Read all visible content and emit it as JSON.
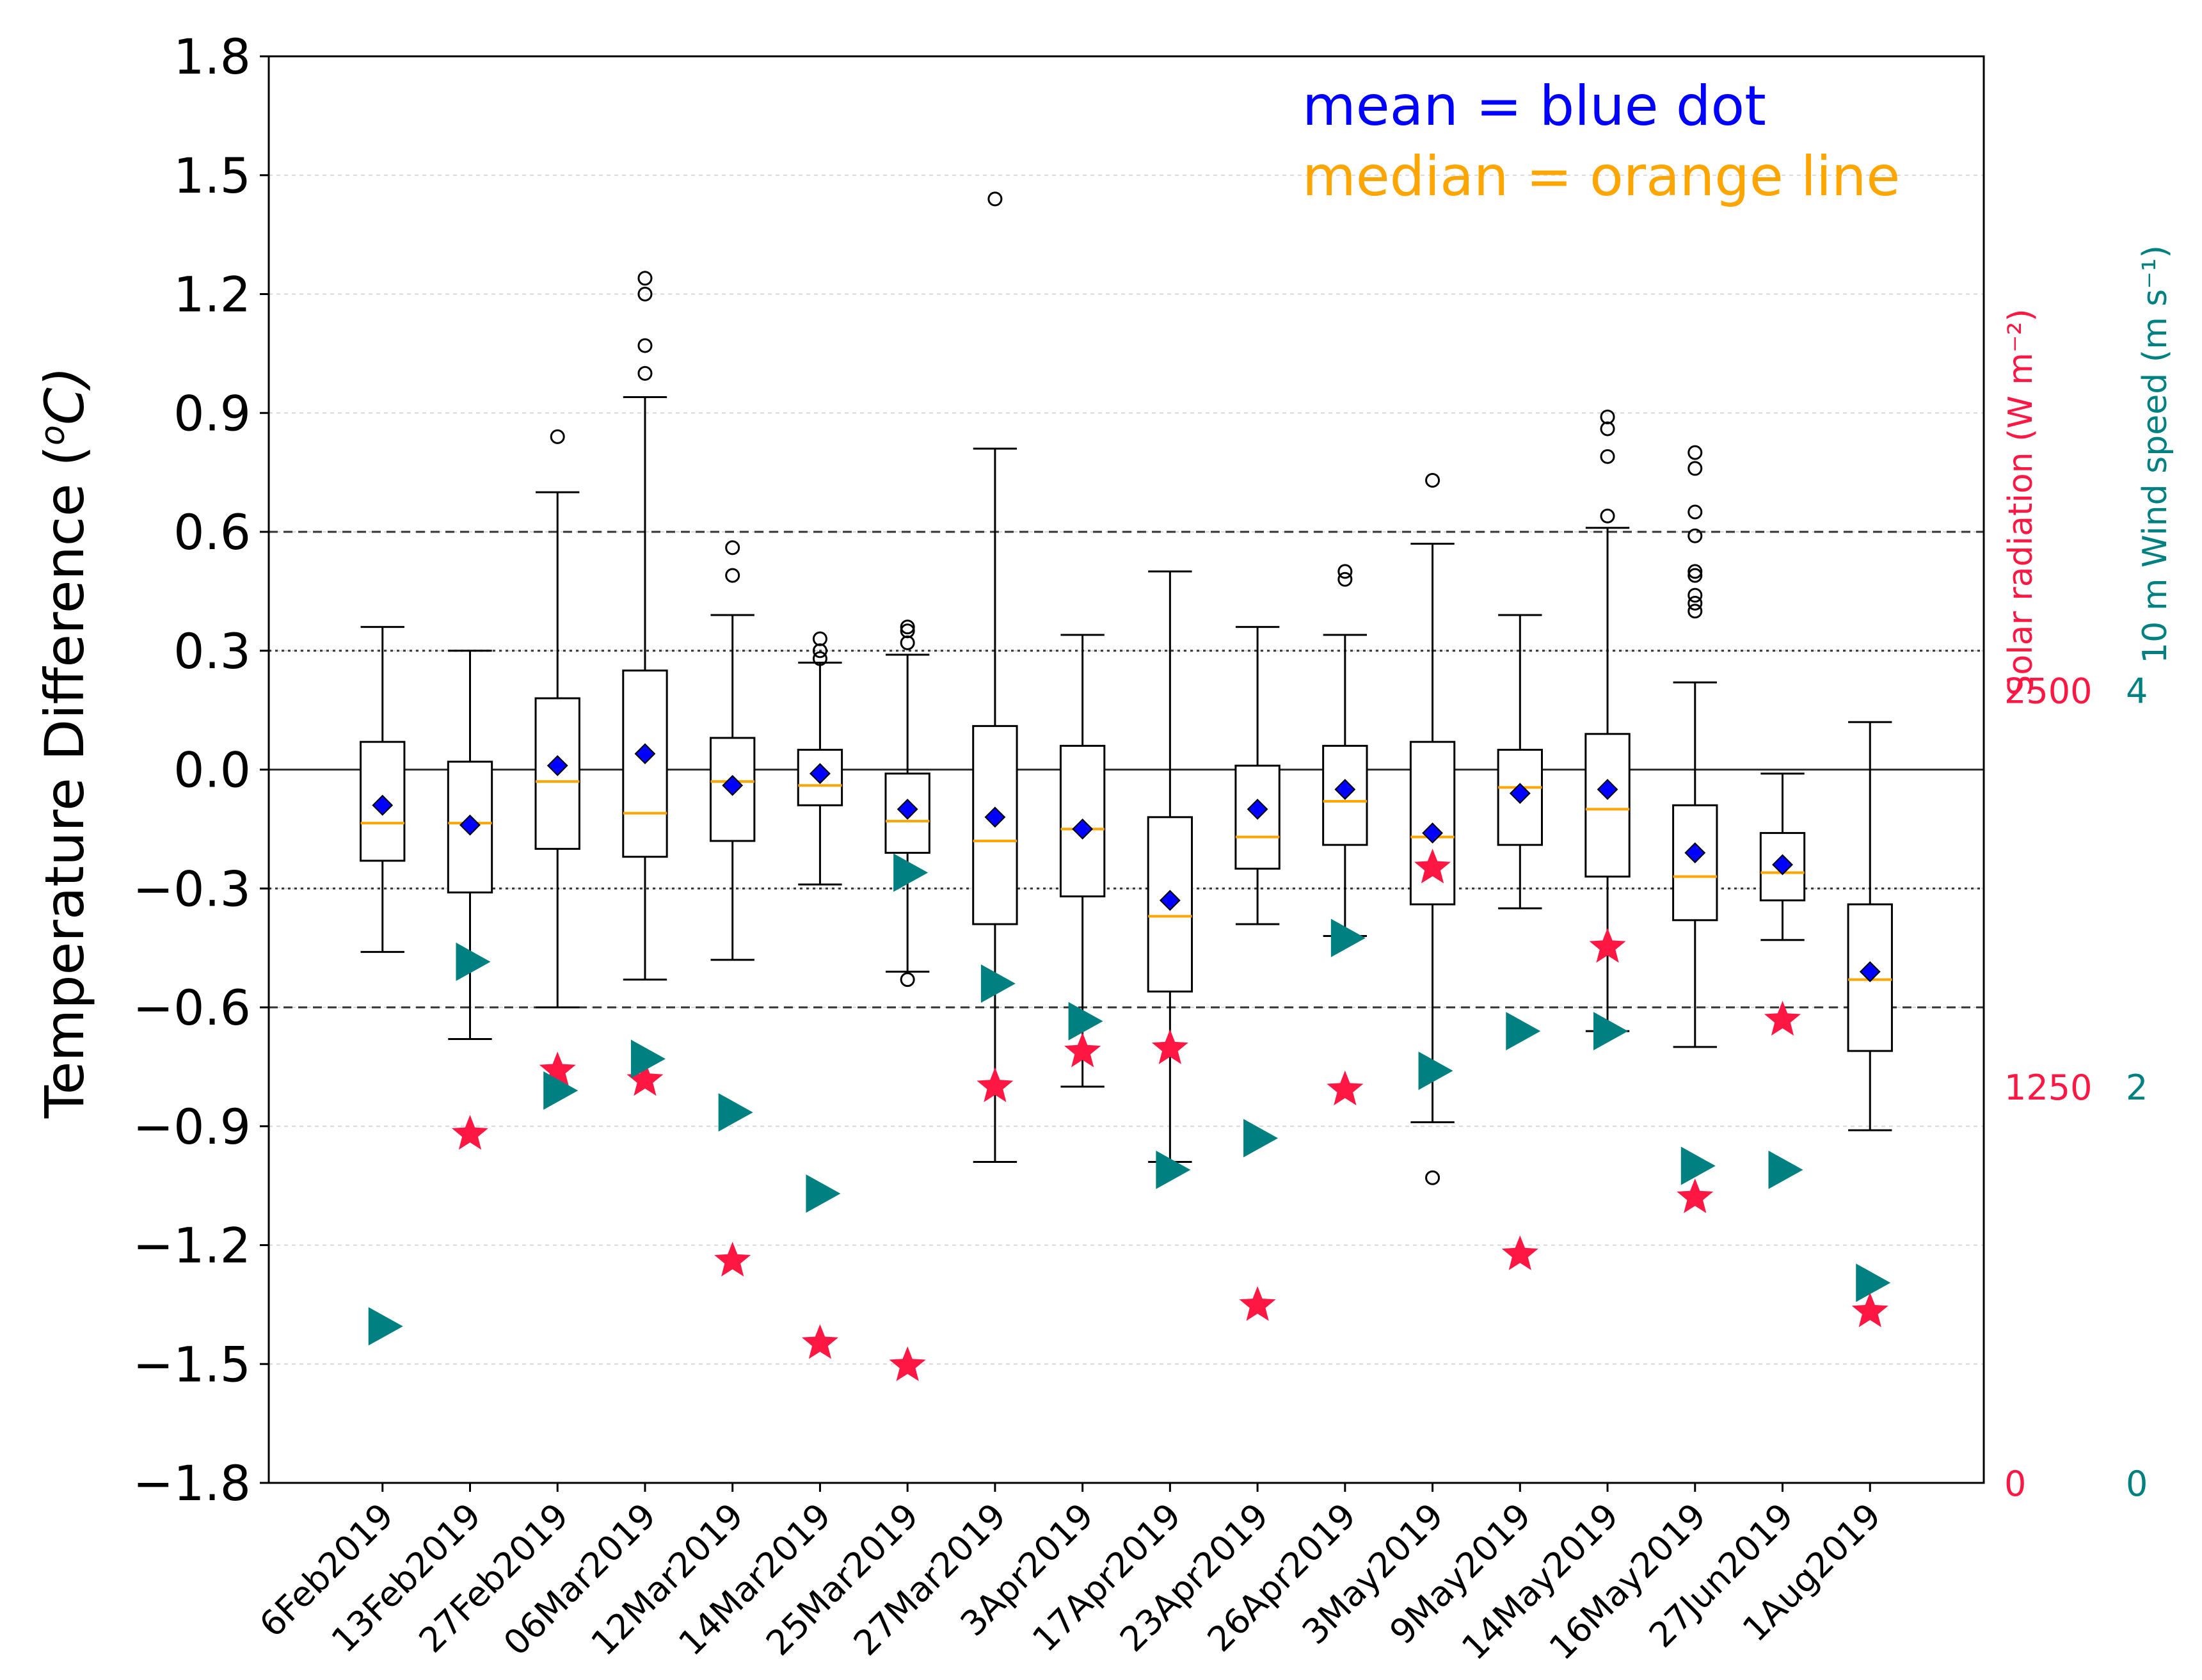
{
  "chart_data": {
    "type": "box",
    "ylabel": "Temperature Difference (°C)",
    "ylabel_main": "Temperature Difference (",
    "ylabel_unit_sup": "o",
    "ylabel_unit_tail": "C)",
    "ylim": [
      -1.8,
      1.8
    ],
    "yticks": [
      "1.8",
      "1.5",
      "1.2",
      "0.9",
      "0.6",
      "0.3",
      "0.0",
      "−0.3",
      "−0.6",
      "−0.9",
      "−1.2",
      "−1.5",
      "−1.8"
    ],
    "ytick_values": [
      1.8,
      1.5,
      1.2,
      0.9,
      0.6,
      0.3,
      0.0,
      -0.3,
      -0.6,
      -0.9,
      -1.2,
      -1.5,
      -1.8
    ],
    "reference_lines": {
      "solid": [
        0.0
      ],
      "dotted": [
        0.3,
        -0.3
      ],
      "dashed": [
        0.6,
        -0.6
      ]
    },
    "legend": {
      "mean_label": "mean = blue dot",
      "median_label": "median = orange line",
      "mean_color": "#0000ff",
      "median_color": "#ffa500"
    },
    "right_axes": {
      "solar_title": "Solar radiation (W m⁻²)",
      "solar_color": "#ff1744",
      "solar_range": [
        0,
        4500
      ],
      "solar_ticks": [
        "0",
        "1250",
        "2500"
      ],
      "solar_tick_values": [
        0,
        1250,
        2500
      ],
      "wind_title": "10 m Wind speed (m s⁻¹)",
      "wind_color": "#008080",
      "wind_range": [
        0,
        7.2
      ],
      "wind_ticks": [
        "0",
        "2",
        "4"
      ],
      "wind_tick_values": [
        0,
        2,
        4
      ]
    },
    "categories": [
      "6Feb2019",
      "13Feb2019",
      "27Feb2019",
      "06Mar2019",
      "12Mar2019",
      "14Mar2019",
      "25Mar2019",
      "27Mar2019",
      "3Apr2019",
      "17Apr2019",
      "23Apr2019",
      "26Apr2019",
      "3May2019",
      "9May2019",
      "14May2019",
      "16May2019",
      "27Jun2019",
      "1Aug2019"
    ],
    "boxes": [
      {
        "whislo": -0.46,
        "q1": -0.23,
        "med": -0.135,
        "q3": 0.07,
        "whishi": 0.36,
        "mean": -0.09,
        "fliers": []
      },
      {
        "whislo": -0.68,
        "q1": -0.31,
        "med": -0.135,
        "q3": 0.02,
        "whishi": 0.3,
        "mean": -0.14,
        "fliers": []
      },
      {
        "whislo": -0.6,
        "q1": -0.2,
        "med": -0.03,
        "q3": 0.18,
        "whishi": 0.7,
        "mean": 0.01,
        "fliers": [
          0.84
        ]
      },
      {
        "whislo": -0.53,
        "q1": -0.22,
        "med": -0.11,
        "q3": 0.25,
        "whishi": 0.94,
        "mean": 0.04,
        "fliers": [
          1.0,
          1.07,
          1.2,
          1.24
        ]
      },
      {
        "whislo": -0.48,
        "q1": -0.18,
        "med": -0.03,
        "q3": 0.08,
        "whishi": 0.39,
        "mean": -0.04,
        "fliers": [
          0.49,
          0.56
        ]
      },
      {
        "whislo": -0.29,
        "q1": -0.09,
        "med": -0.04,
        "q3": 0.05,
        "whishi": 0.27,
        "mean": -0.01,
        "fliers": [
          0.28,
          0.3,
          0.33
        ]
      },
      {
        "whislo": -0.51,
        "q1": -0.21,
        "med": -0.13,
        "q3": -0.01,
        "whishi": 0.29,
        "mean": -0.1,
        "fliers": [
          -0.53,
          0.32,
          0.35,
          0.36
        ]
      },
      {
        "whislo": -0.99,
        "q1": -0.39,
        "med": -0.18,
        "q3": 0.11,
        "whishi": 0.81,
        "mean": -0.12,
        "fliers": [
          1.44
        ]
      },
      {
        "whislo": -0.8,
        "q1": -0.32,
        "med": -0.15,
        "q3": 0.06,
        "whishi": 0.34,
        "mean": -0.15,
        "fliers": []
      },
      {
        "whislo": -0.99,
        "q1": -0.56,
        "med": -0.37,
        "q3": -0.12,
        "whishi": 0.5,
        "mean": -0.33,
        "fliers": []
      },
      {
        "whislo": -0.39,
        "q1": -0.25,
        "med": -0.17,
        "q3": 0.01,
        "whishi": 0.36,
        "mean": -0.1,
        "fliers": []
      },
      {
        "whislo": -0.42,
        "q1": -0.19,
        "med": -0.08,
        "q3": 0.06,
        "whishi": 0.34,
        "mean": -0.05,
        "fliers": [
          0.48,
          0.5
        ]
      },
      {
        "whislo": -0.89,
        "q1": -0.34,
        "med": -0.17,
        "q3": 0.07,
        "whishi": 0.57,
        "mean": -0.16,
        "fliers": [
          -1.03,
          0.73
        ]
      },
      {
        "whislo": -0.35,
        "q1": -0.19,
        "med": -0.045,
        "q3": 0.05,
        "whishi": 0.39,
        "mean": -0.06,
        "fliers": []
      },
      {
        "whislo": -0.66,
        "q1": -0.27,
        "med": -0.1,
        "q3": 0.09,
        "whishi": 0.61,
        "mean": -0.05,
        "fliers": [
          0.64,
          0.79,
          0.86,
          0.89
        ]
      },
      {
        "whislo": -0.7,
        "q1": -0.38,
        "med": -0.27,
        "q3": -0.09,
        "whishi": 0.22,
        "mean": -0.21,
        "fliers": [
          0.4,
          0.42,
          0.44,
          0.49,
          0.5,
          0.59,
          0.65,
          0.76,
          0.8
        ]
      },
      {
        "whislo": -0.43,
        "q1": -0.33,
        "med": -0.26,
        "q3": -0.16,
        "whishi": -0.01,
        "mean": -0.24,
        "fliers": []
      },
      {
        "whislo": -0.91,
        "q1": -0.71,
        "med": -0.53,
        "q3": -0.34,
        "whishi": 0.12,
        "mean": -0.51,
        "fliers": []
      }
    ],
    "solar_radiation": [
      null,
      1100,
      1300,
      1270,
      700,
      440,
      370,
      1250,
      1360,
      1370,
      560,
      1240,
      1940,
      720,
      1690,
      900,
      1460,
      540
    ],
    "wind_speed": [
      0.79,
      2.63,
      1.98,
      2.14,
      1.87,
      1.46,
      3.08,
      2.52,
      2.33,
      1.58,
      1.74,
      2.75,
      2.08,
      2.28,
      2.28,
      1.6,
      1.58,
      1.01
    ]
  }
}
